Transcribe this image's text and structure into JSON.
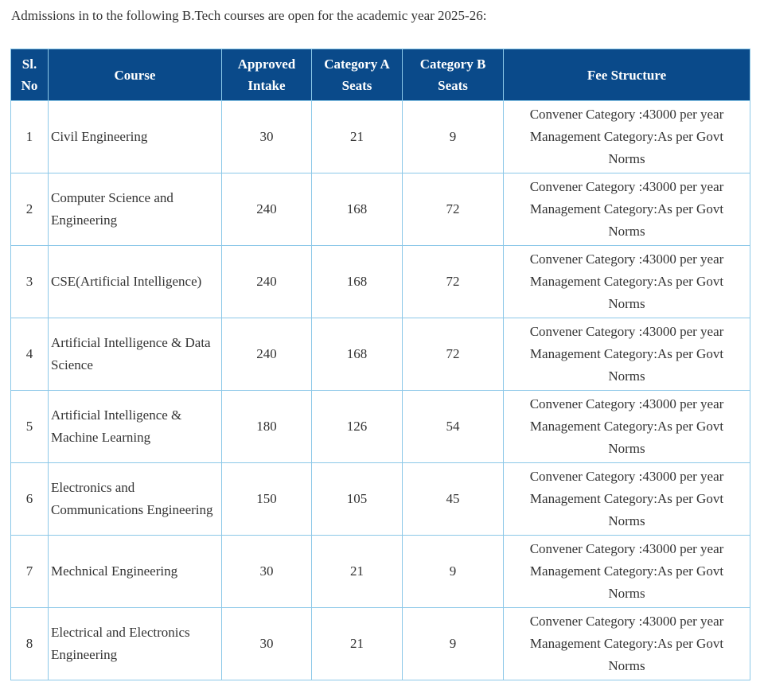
{
  "intro_text": "Admissions in to the following B.Tech courses are open for the academic year 2025-26:",
  "headers": {
    "sl_line1": "Sl.",
    "sl_line2": "No",
    "course": "Course",
    "intake_line1": "Approved",
    "intake_line2": "Intake",
    "cat_a_line1": "Category A",
    "cat_a_line2": "Seats",
    "cat_b_line1": "Category B",
    "cat_b_line2": "Seats",
    "fee": "Fee Structure"
  },
  "rows": [
    {
      "no": "1",
      "course": "Civil Engineering",
      "intake": "30",
      "cat_a": "21",
      "cat_b": "9",
      "fee_line1": "Convener Category :43000 per year",
      "fee_line2": "Management Category:As per Govt",
      "fee_line3": "Norms"
    },
    {
      "no": "2",
      "course": "Computer Science and Engineering",
      "intake": "240",
      "cat_a": "168",
      "cat_b": "72",
      "fee_line1": "Convener Category :43000 per year",
      "fee_line2": "Management Category:As per Govt",
      "fee_line3": "Norms"
    },
    {
      "no": "3",
      "course": "CSE(Artificial Intelligence)",
      "intake": "240",
      "cat_a": "168",
      "cat_b": "72",
      "fee_line1": "Convener Category :43000 per year",
      "fee_line2": "Management Category:As per Govt",
      "fee_line3": "Norms"
    },
    {
      "no": "4",
      "course": "Artificial Intelligence & Data Science",
      "intake": "240",
      "cat_a": "168",
      "cat_b": "72",
      "fee_line1": "Convener Category :43000 per year",
      "fee_line2": "Management Category:As per Govt",
      "fee_line3": "Norms"
    },
    {
      "no": "5",
      "course": "Artificial Intelligence & Machine Learning",
      "intake": "180",
      "cat_a": "126",
      "cat_b": "54",
      "fee_line1": "Convener Category :43000 per year",
      "fee_line2": "Management Category:As per Govt",
      "fee_line3": "Norms"
    },
    {
      "no": "6",
      "course": "Electronics and Communications Engineering",
      "intake": "150",
      "cat_a": "105",
      "cat_b": "45",
      "fee_line1": "Convener Category :43000 per year",
      "fee_line2": "Management Category:As per Govt",
      "fee_line3": "Norms"
    },
    {
      "no": "7",
      "course": "Mechnical Engineering",
      "intake": "30",
      "cat_a": "21",
      "cat_b": "9",
      "fee_line1": "Convener Category :43000 per year",
      "fee_line2": "Management Category:As per Govt",
      "fee_line3": "Norms"
    },
    {
      "no": "8",
      "course": "Electrical and Electronics Engineering",
      "intake": "30",
      "cat_a": "21",
      "cat_b": "9",
      "fee_line1": "Convener Category :43000 per year",
      "fee_line2": "Management Category:As per Govt",
      "fee_line3": "Norms"
    }
  ]
}
